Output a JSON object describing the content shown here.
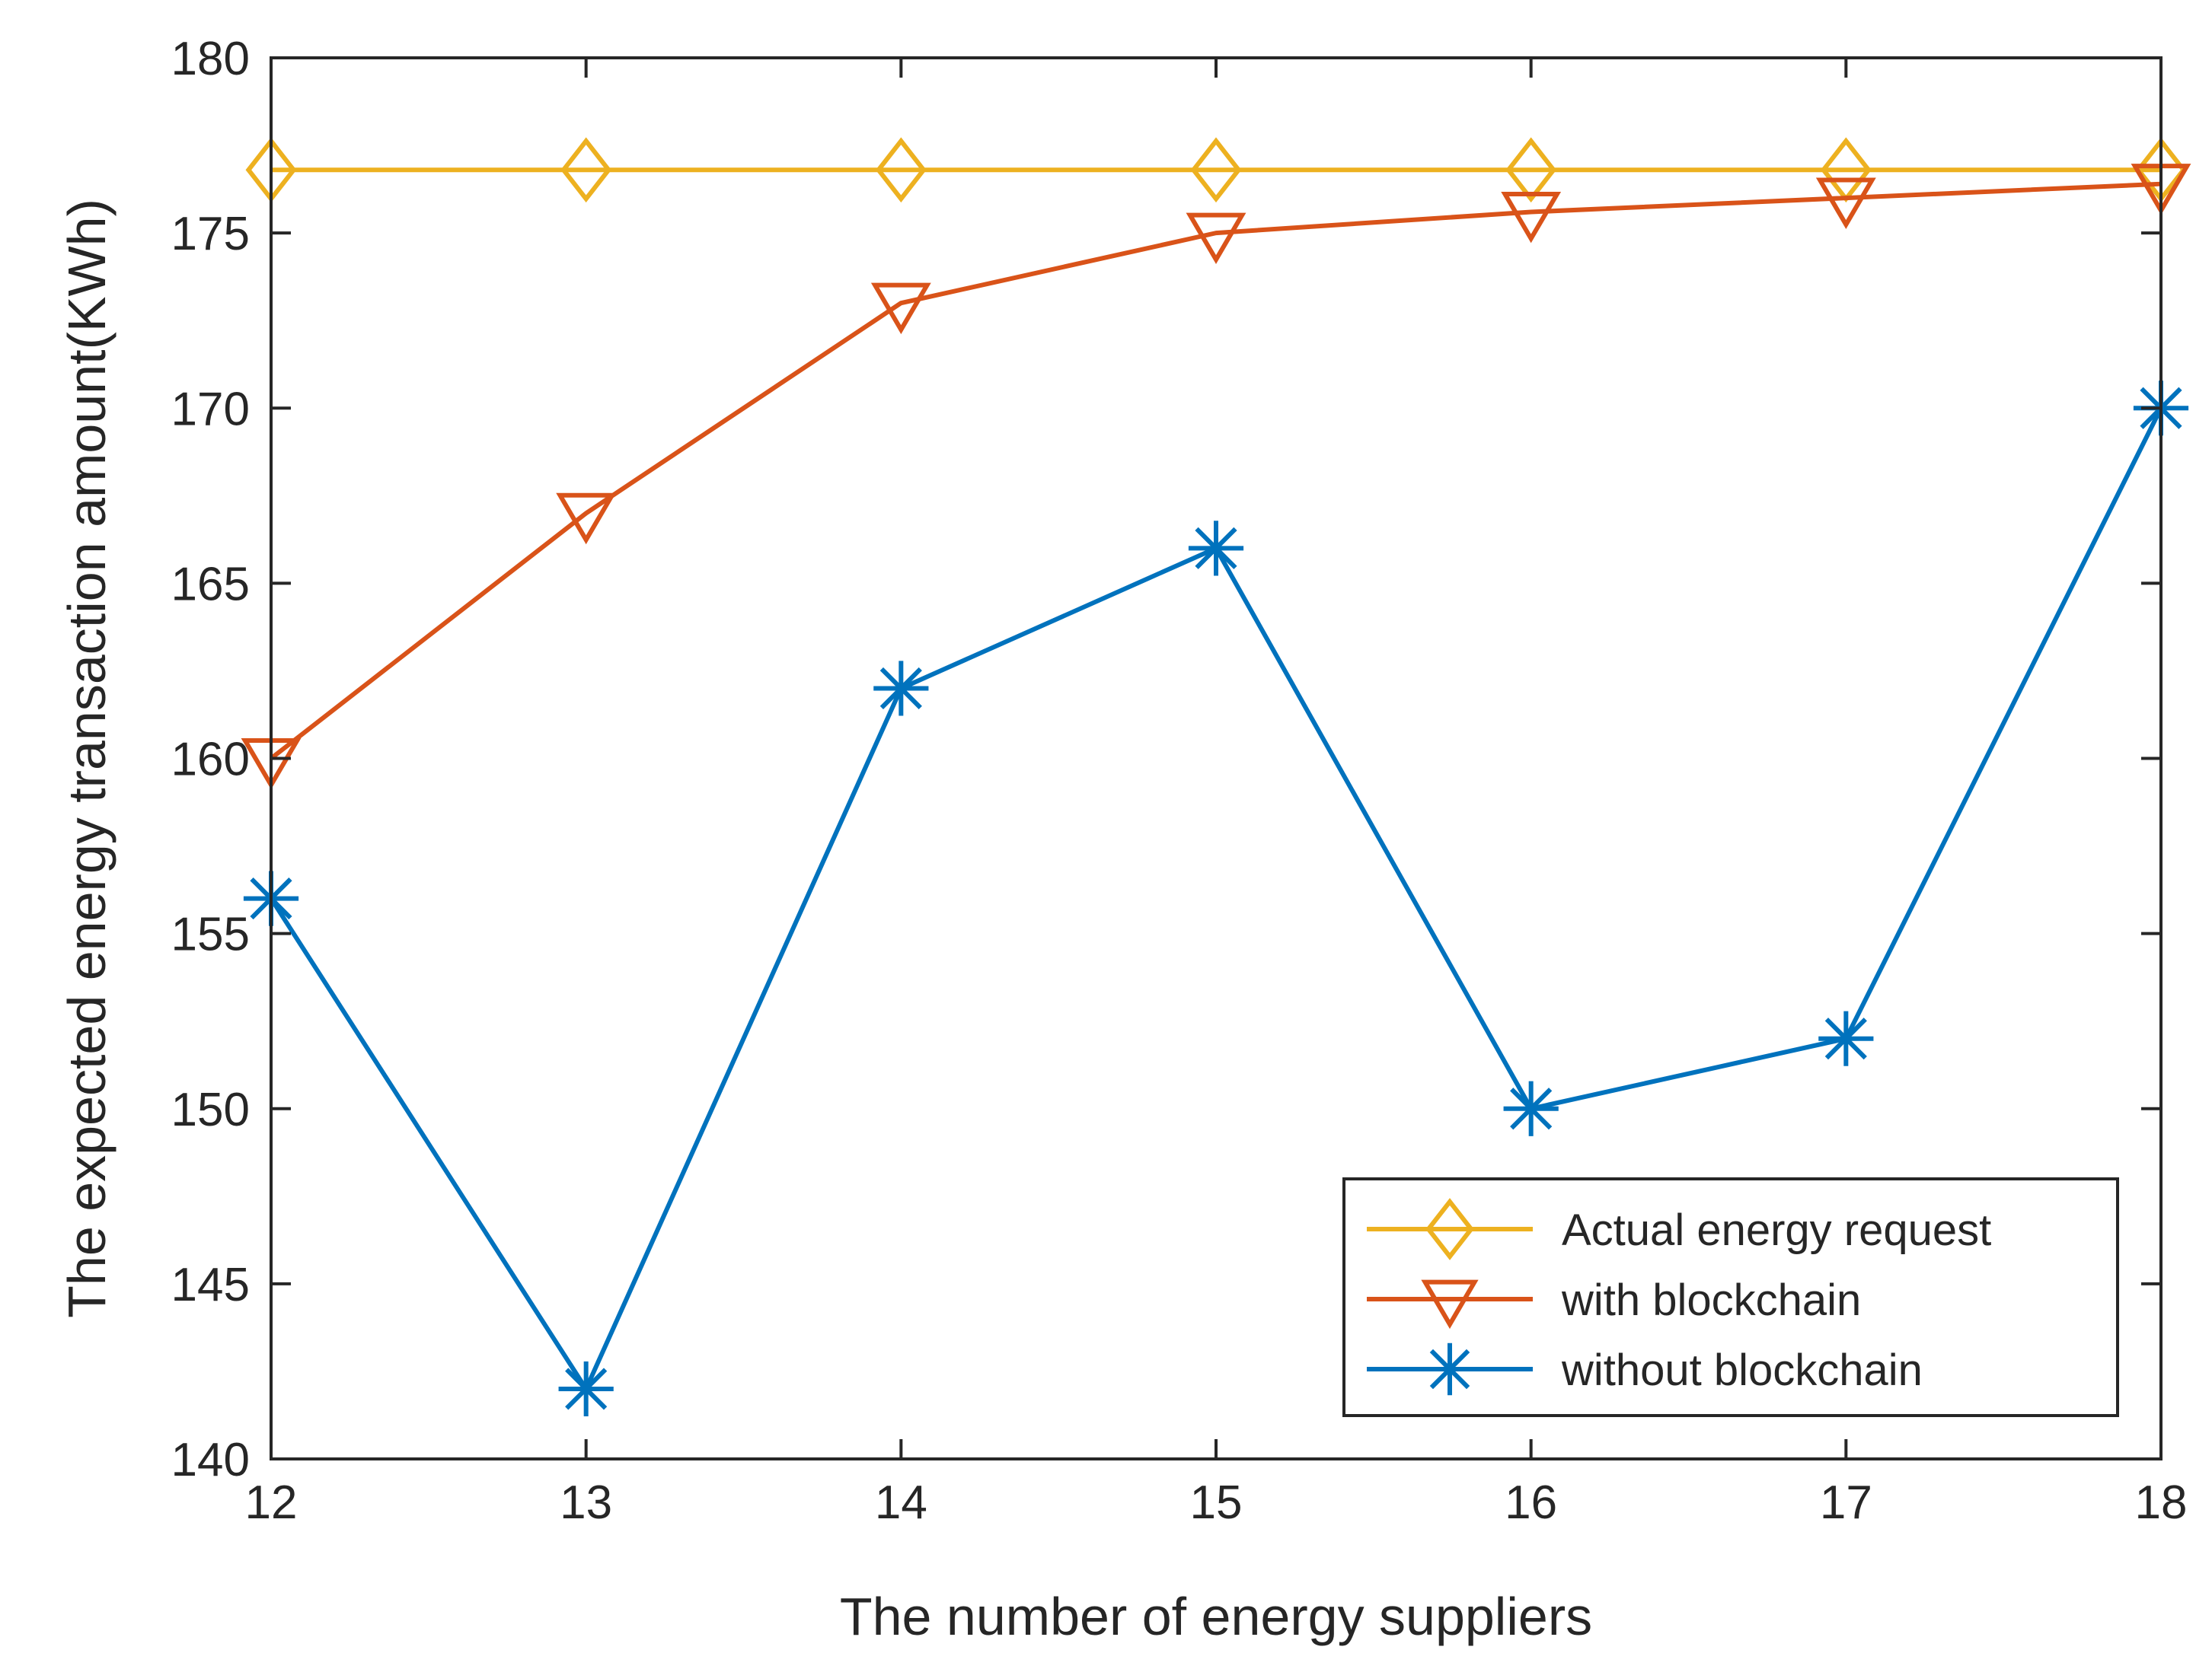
{
  "chart_data": {
    "type": "line",
    "title": "",
    "xlabel": "The number of energy suppliers",
    "ylabel": "The expected energy transaction amount(KWh)",
    "x": [
      12,
      13,
      14,
      15,
      16,
      17,
      18
    ],
    "xlim": [
      12,
      18
    ],
    "ylim": [
      140,
      180
    ],
    "xticks": [
      12,
      13,
      14,
      15,
      16,
      17,
      18
    ],
    "yticks": [
      140,
      145,
      150,
      155,
      160,
      165,
      170,
      175,
      180
    ],
    "grid": false,
    "legend_location": "bottom-right",
    "series": [
      {
        "name": "Actual energy request",
        "color": "#EDB120",
        "marker": "diamond",
        "values": [
          176.8,
          176.8,
          176.8,
          176.8,
          176.8,
          176.8,
          176.8
        ]
      },
      {
        "name": "with blockchain",
        "color": "#D95319",
        "marker": "triangle-down",
        "values": [
          160,
          167,
          173,
          175,
          175.6,
          176,
          176.4
        ]
      },
      {
        "name": " without blockchain",
        "color": "#0072BD",
        "marker": "asterisk",
        "values": [
          156,
          142,
          162,
          166,
          150,
          152,
          170
        ]
      }
    ]
  }
}
